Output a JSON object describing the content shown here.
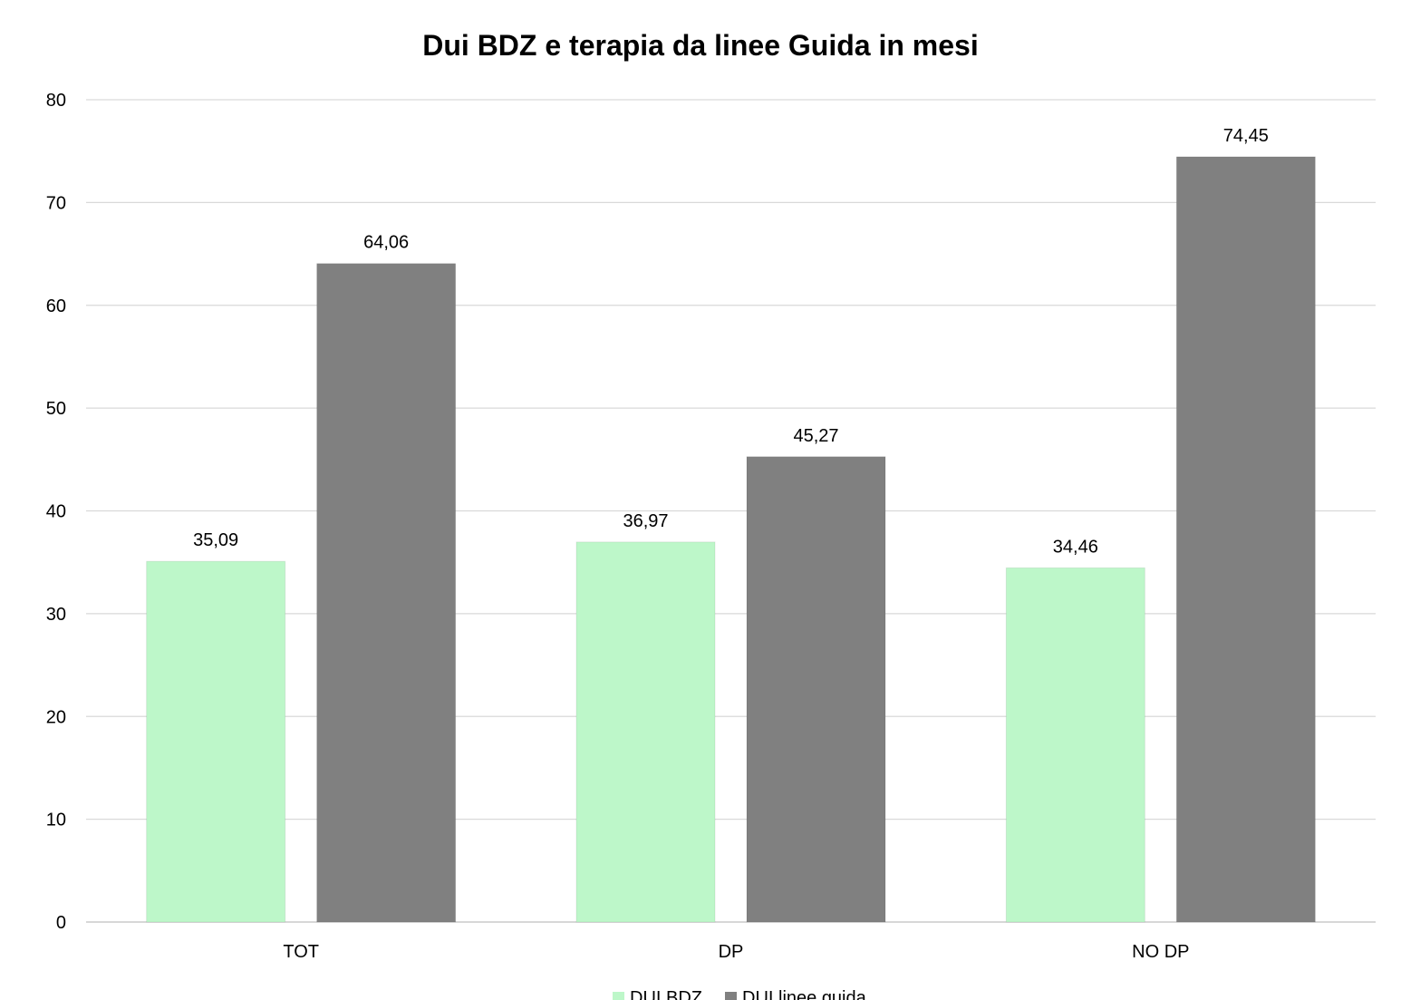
{
  "chart_data": {
    "type": "bar",
    "title": "Dui BDZ e terapia da linee Guida in mesi",
    "xlabel": "",
    "ylabel": "",
    "categories": [
      "TOT",
      "DP",
      "NO DP"
    ],
    "series": [
      {
        "name": "DUI BDZ",
        "color": "#bdf7c9",
        "values": [
          35.09,
          36.97,
          34.46
        ],
        "labels": [
          "35,09",
          "36,97",
          "34,46"
        ]
      },
      {
        "name": "DUI linee guida",
        "color": "#808080",
        "values": [
          64.06,
          45.27,
          74.45
        ],
        "labels": [
          "64,06",
          "45,27",
          "74,45"
        ]
      }
    ],
    "ylim": [
      0,
      80
    ],
    "yticks": [
      0,
      10,
      20,
      30,
      40,
      50,
      60,
      70,
      80
    ],
    "grid": true,
    "legend": "bottom"
  }
}
